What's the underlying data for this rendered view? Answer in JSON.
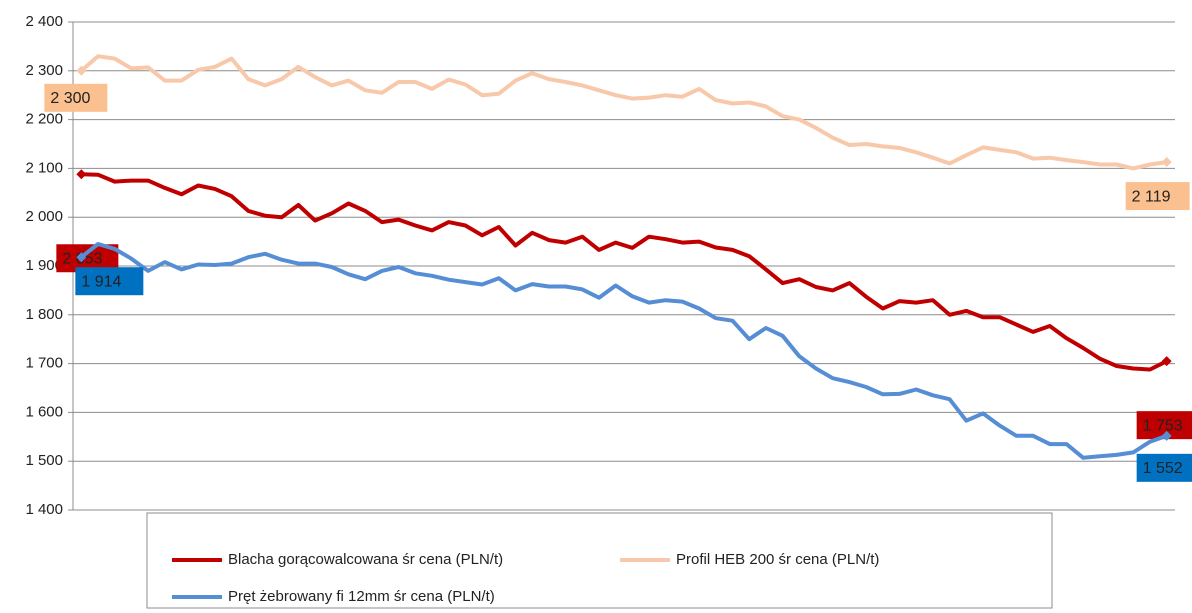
{
  "chart_data": {
    "type": "line",
    "categories": [
      null,
      null,
      null,
      null,
      null,
      null,
      null,
      null,
      null,
      null,
      null,
      null,
      null,
      null,
      null,
      null,
      null,
      null,
      null,
      null,
      null,
      null,
      null,
      null,
      null,
      null,
      null,
      null,
      null,
      null,
      null,
      null,
      null,
      null,
      null,
      null,
      null,
      null,
      null,
      null,
      null,
      null,
      null,
      null,
      null,
      null,
      null,
      null,
      null,
      null,
      null,
      null,
      null,
      null,
      null,
      null,
      null,
      null,
      null,
      null,
      null,
      null,
      null,
      null,
      null,
      null
    ],
    "ylim": [
      1400,
      2400
    ],
    "yticks": [
      {
        "value": 1400,
        "label": "1 400"
      },
      {
        "value": 1500,
        "label": "1 500"
      },
      {
        "value": 1600,
        "label": "1 600"
      },
      {
        "value": 1700,
        "label": "1 700"
      },
      {
        "value": 1800,
        "label": "1 800"
      },
      {
        "value": 1900,
        "label": "1 900"
      },
      {
        "value": 2000,
        "label": "2 000"
      },
      {
        "value": 2100,
        "label": "2 100"
      },
      {
        "value": 2200,
        "label": "2 200"
      },
      {
        "value": 2300,
        "label": "2 300"
      },
      {
        "value": 2400,
        "label": "2 400"
      }
    ],
    "grid": true,
    "legend": "bottom",
    "series": [
      {
        "name": "Blacha gorącowalcowana śr cena (PLN/t)",
        "color": "#c00000",
        "label_color": "#c00000",
        "annotations": [
          "2 053",
          "1 753"
        ],
        "values": [
          2088,
          2087,
          2073,
          2075,
          2075,
          2060,
          2047,
          2065,
          2058,
          2043,
          2013,
          2003,
          2000,
          2025,
          1993,
          2008,
          2028,
          2013,
          1990,
          1995,
          1983,
          1973,
          1990,
          1983,
          1963,
          1980,
          1942,
          1968,
          1953,
          1948,
          1960,
          1933,
          1948,
          1937,
          1960,
          1955,
          1948,
          1950,
          1938,
          1933,
          1920,
          1893,
          1865,
          1873,
          1857,
          1850,
          1865,
          1837,
          1813,
          1828,
          1825,
          1830,
          1800,
          1808,
          1795,
          1795,
          1780,
          1765,
          1777,
          1752,
          1732,
          1710,
          1695,
          1690,
          1688,
          1705
        ]
      },
      {
        "name": "Profil HEB 200 śr cena (PLN/t)",
        "color": "#f8c8aa",
        "label_color": "#fac090",
        "annotations": [
          "2 300",
          "2 119"
        ],
        "values": [
          2300,
          2330,
          2325,
          2305,
          2307,
          2280,
          2280,
          2302,
          2308,
          2325,
          2283,
          2270,
          2283,
          2308,
          2287,
          2270,
          2280,
          2260,
          2255,
          2277,
          2277,
          2263,
          2282,
          2272,
          2250,
          2253,
          2280,
          2295,
          2283,
          2277,
          2270,
          2260,
          2250,
          2243,
          2245,
          2250,
          2247,
          2263,
          2240,
          2233,
          2235,
          2227,
          2207,
          2200,
          2183,
          2163,
          2148,
          2150,
          2145,
          2142,
          2133,
          2122,
          2110,
          2127,
          2143,
          2138,
          2133,
          2120,
          2122,
          2117,
          2113,
          2108,
          2108,
          2100,
          2108,
          2113
        ]
      },
      {
        "name": "Pręt żebrowany fi 12mm  śr cena (PLN/t)",
        "color": "#558ed5",
        "label_color": "#0070c0",
        "annotations": [
          "1 914",
          "1 552"
        ],
        "values": [
          1918,
          1945,
          1935,
          1915,
          1890,
          1908,
          1893,
          1903,
          1902,
          1905,
          1918,
          1925,
          1913,
          1905,
          1905,
          1898,
          1883,
          1873,
          1890,
          1898,
          1885,
          1880,
          1872,
          1867,
          1862,
          1875,
          1850,
          1863,
          1858,
          1858,
          1852,
          1835,
          1860,
          1838,
          1825,
          1830,
          1827,
          1813,
          1793,
          1788,
          1750,
          1773,
          1757,
          1715,
          1690,
          1670,
          1662,
          1652,
          1637,
          1638,
          1647,
          1635,
          1627,
          1583,
          1598,
          1573,
          1552,
          1552,
          1535,
          1535,
          1507,
          1510,
          1513,
          1518,
          1540,
          1552
        ]
      }
    ]
  }
}
